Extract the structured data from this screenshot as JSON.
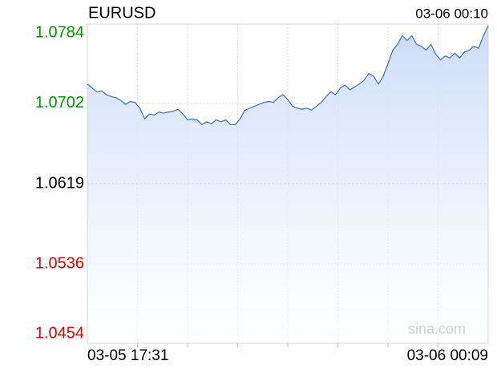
{
  "chart_data": {
    "type": "line",
    "title": "EURUSD",
    "subtitle": "03-06 00:10",
    "watermark": "sina.com",
    "categories": [
      "03-05 17:31",
      null,
      null,
      null,
      null,
      null,
      null,
      null,
      null,
      null,
      null,
      null,
      null,
      null,
      null,
      null,
      null,
      null,
      null,
      null,
      null,
      null,
      null,
      null,
      null,
      null,
      null,
      null,
      null,
      null,
      null,
      null,
      null,
      null,
      null,
      null,
      null,
      null,
      null,
      null,
      null,
      null,
      null,
      null,
      null,
      null,
      null,
      null,
      null,
      null,
      null,
      null,
      null,
      null,
      null,
      null,
      null,
      null,
      null,
      null,
      null,
      null,
      null,
      null,
      null,
      null,
      null,
      null,
      null,
      null,
      null,
      null,
      null,
      null,
      null,
      null,
      null,
      null,
      null,
      null,
      null,
      null,
      null,
      null,
      "03-06 00:09"
    ],
    "values": [
      1.0722,
      1.0718,
      1.0714,
      1.0715,
      1.0711,
      1.0709,
      1.0708,
      1.0705,
      1.0701,
      1.0704,
      1.0703,
      1.0697,
      1.0686,
      1.0691,
      1.069,
      1.0693,
      1.0692,
      1.0693,
      1.0694,
      1.0696,
      1.0691,
      1.0685,
      1.0686,
      1.0685,
      1.068,
      1.0683,
      1.0681,
      1.0685,
      1.0683,
      1.0685,
      1.068,
      1.068,
      1.0686,
      1.0695,
      1.0697,
      1.0699,
      1.0701,
      1.0703,
      1.0704,
      1.0703,
      1.0708,
      1.0711,
      1.0706,
      1.0699,
      1.0697,
      1.0696,
      1.0697,
      1.0695,
      1.0699,
      1.0703,
      1.0709,
      1.0714,
      1.0711,
      1.0718,
      1.0721,
      1.0716,
      1.0719,
      1.0722,
      1.0726,
      1.0733,
      1.073,
      1.0722,
      1.073,
      1.0743,
      1.0757,
      1.0763,
      1.0772,
      1.0767,
      1.0772,
      1.0763,
      1.0761,
      1.0757,
      1.0763,
      1.0753,
      1.0747,
      1.0751,
      1.0749,
      1.0754,
      1.0749,
      1.0755,
      1.0757,
      1.0761,
      1.0759,
      1.0772,
      1.0782
    ],
    "color": "#3a6fc4",
    "ylim": [
      1.0454,
      1.0784
    ],
    "yticks": [
      1.0784,
      1.0702,
      1.0619,
      1.0536,
      1.0454
    ],
    "baseline": 1.0619,
    "up_color": "#009900",
    "down_color": "#e60000",
    "grid": true
  }
}
